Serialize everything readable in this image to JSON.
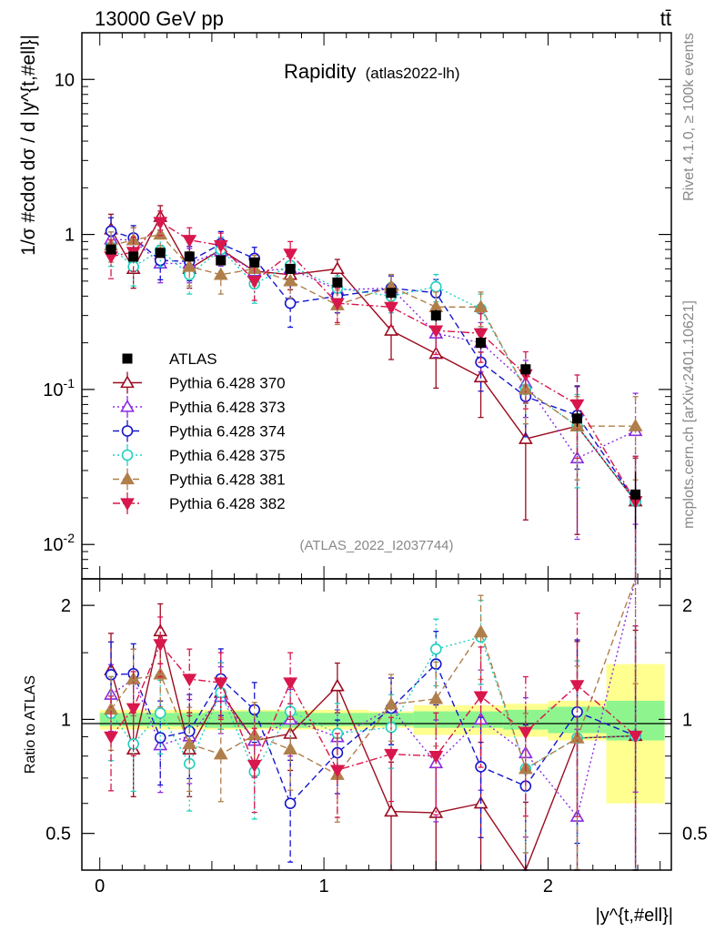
{
  "header": {
    "energy_label": "13000 GeV pp",
    "process_label": "tt̄"
  },
  "plot": {
    "title": "Rapidity",
    "subtitle": "(atlas2022-lh)",
    "analysis_id": "(ATLAS_2022_I2037744)",
    "ylabel_main": "1/σ #cdot dσ / d |y^{t,#ell}|",
    "ylabel_ratio": "Ratio to ATLAS",
    "xlabel": "|y^{t,#ell}|"
  },
  "side_labels": {
    "rivet": "Rivet 4.1.0, ≥ 100k events",
    "mcplots": "mcplots.cern.ch [arXiv:2401.10621]"
  },
  "colors": {
    "ATLAS": "#000000",
    "370": "#9b0b1f",
    "373": "#8a2be2",
    "374": "#1515cc",
    "375": "#1fd1c0",
    "381": "#b07e4a",
    "382": "#d8174c",
    "band_inner": "#8ef58e",
    "band_outer": "#ffff90"
  },
  "chart_data": {
    "type": "line",
    "x": [
      0.05,
      0.15,
      0.27,
      0.4,
      0.54,
      0.69,
      0.85,
      1.06,
      1.3,
      1.5,
      1.7,
      1.9,
      2.13,
      2.39
    ],
    "x_edges": [
      0.0,
      0.1,
      0.2,
      0.33,
      0.47,
      0.61,
      0.77,
      0.93,
      1.2,
      1.4,
      1.6,
      1.8,
      2.0,
      2.26,
      2.52
    ],
    "xlim": [
      -0.08,
      2.55
    ],
    "xticks": [
      0,
      1,
      2
    ],
    "main_ylim": [
      0.006,
      20
    ],
    "main_ylog": true,
    "main_yticks": [
      0.01,
      0.1,
      1,
      10
    ],
    "main_ytick_labels": [
      "10^{-2}",
      "10^{-1}",
      "1",
      "10"
    ],
    "ratio_ylim": [
      0.4,
      2.35
    ],
    "ratio_ylog": true,
    "ratio_yticks": [
      0.5,
      1,
      2
    ],
    "ratio_ytick_labels": [
      "0.5",
      "1",
      "2"
    ],
    "reference": {
      "name": "ATLAS",
      "values": [
        0.8,
        0.72,
        0.76,
        0.72,
        0.68,
        0.66,
        0.6,
        0.49,
        0.42,
        0.3,
        0.2,
        0.135,
        0.065,
        0.021
      ],
      "band_inner": [
        0.04,
        0.04,
        0.04,
        0.04,
        0.05,
        0.05,
        0.05,
        0.04,
        0.04,
        0.05,
        0.05,
        0.06,
        0.08,
        0.12
      ],
      "band_outer": [
        0.06,
        0.06,
        0.06,
        0.06,
        0.06,
        0.06,
        0.06,
        0.06,
        0.05,
        0.09,
        0.09,
        0.1,
        0.12,
        0.4
      ]
    },
    "series": [
      {
        "name": "Pythia 6.428 370",
        "key": "370",
        "marker": "triangle-up-open",
        "dash": "solid",
        "values": [
          1.08,
          0.6,
          1.3,
          0.6,
          0.8,
          0.58,
          0.55,
          0.6,
          0.24,
          0.17,
          0.12,
          0.048,
          0.058,
          0.019
        ],
        "err_rel": [
          0.25,
          0.25,
          0.18,
          0.25,
          0.2,
          0.2,
          0.2,
          0.15,
          0.35,
          0.4,
          0.45,
          0.7,
          0.8,
          0.9
        ]
      },
      {
        "name": "Pythia 6.428 373",
        "key": "373",
        "marker": "triangle-up-open",
        "dash": "dotted",
        "values": [
          0.93,
          0.92,
          0.65,
          0.65,
          0.78,
          0.58,
          0.6,
          0.44,
          0.45,
          0.23,
          0.2,
          0.11,
          0.036,
          0.054
        ],
        "err_rel": [
          0.2,
          0.2,
          0.25,
          0.25,
          0.2,
          0.2,
          0.2,
          0.18,
          0.2,
          0.3,
          0.35,
          0.4,
          0.7,
          0.75
        ]
      },
      {
        "name": "Pythia 6.428 374",
        "key": "374",
        "marker": "circle-open",
        "dash": "dashed",
        "values": [
          1.05,
          0.95,
          0.68,
          0.67,
          0.87,
          0.7,
          0.36,
          0.4,
          0.45,
          0.42,
          0.15,
          0.09,
          0.068,
          0.019
        ],
        "err_rel": [
          0.22,
          0.2,
          0.25,
          0.25,
          0.2,
          0.18,
          0.3,
          0.22,
          0.2,
          0.22,
          0.35,
          0.45,
          0.55,
          0.95
        ]
      },
      {
        "name": "Pythia 6.428 375",
        "key": "375",
        "marker": "circle-open",
        "dash": "dotted",
        "values": [
          0.83,
          0.62,
          0.79,
          0.55,
          0.8,
          0.48,
          0.63,
          0.45,
          0.4,
          0.46,
          0.33,
          0.1,
          0.058,
          0.019
        ],
        "err_rel": [
          0.25,
          0.25,
          0.22,
          0.25,
          0.2,
          0.25,
          0.2,
          0.2,
          0.22,
          0.2,
          0.25,
          0.4,
          0.6,
          0.95
        ]
      },
      {
        "name": "Pythia 6.428 381",
        "key": "381",
        "marker": "triangle-up-filled",
        "dash": "dashed",
        "values": [
          0.85,
          0.92,
          1.0,
          0.62,
          0.55,
          0.6,
          0.5,
          0.35,
          0.46,
          0.34,
          0.34,
          0.1,
          0.058,
          0.058
        ],
        "err_rel": [
          0.22,
          0.2,
          0.18,
          0.25,
          0.25,
          0.22,
          0.22,
          0.25,
          0.2,
          0.25,
          0.25,
          0.4,
          0.55,
          0.55
        ]
      },
      {
        "name": "Pythia 6.428 382",
        "key": "382",
        "marker": "triangle-down-filled",
        "dash": "dashdot",
        "values": [
          0.72,
          0.77,
          1.2,
          0.92,
          0.85,
          0.5,
          0.75,
          0.36,
          0.34,
          0.24,
          0.23,
          0.125,
          0.08,
          0.019
        ],
        "err_rel": [
          0.28,
          0.25,
          0.18,
          0.2,
          0.2,
          0.25,
          0.2,
          0.25,
          0.25,
          0.3,
          0.35,
          0.4,
          0.55,
          0.95
        ]
      }
    ]
  }
}
